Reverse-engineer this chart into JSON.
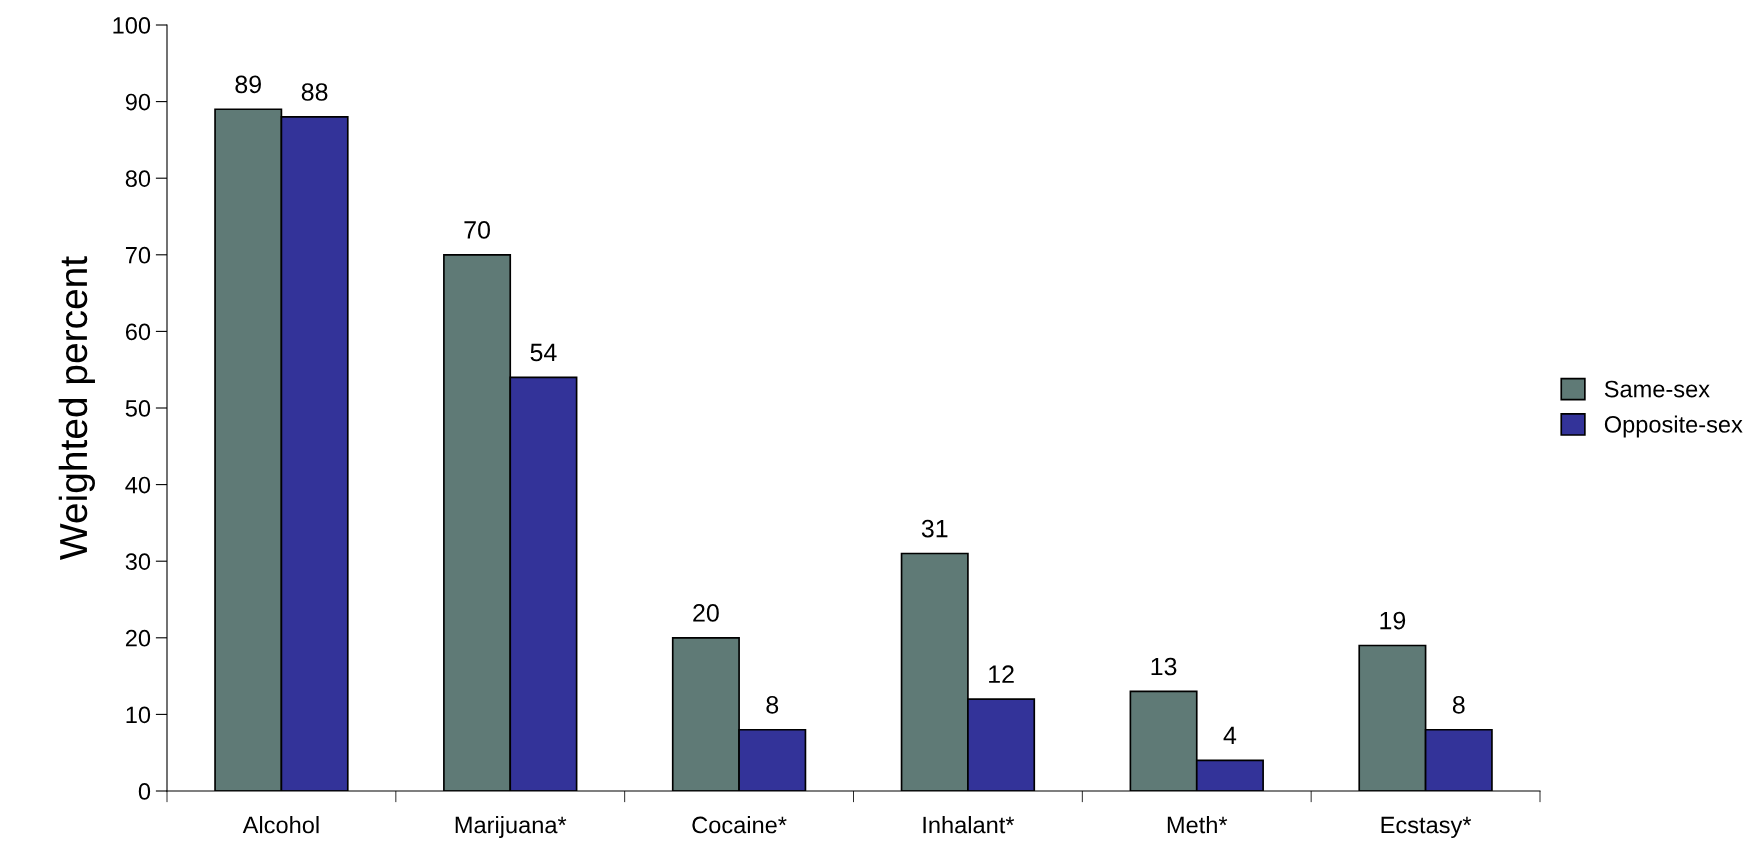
{
  "chart_data": {
    "type": "bar",
    "ylabel": "Weighted percent",
    "categories": [
      "Alcohol",
      "Marijuana*",
      "Cocaine*",
      "Inhalant*",
      "Meth*",
      "Ecstasy*"
    ],
    "series": [
      {
        "name": "Same-sex",
        "color": "#5f7a76",
        "values": [
          89,
          70,
          20,
          31,
          13,
          19
        ]
      },
      {
        "name": "Opposite-sex",
        "color": "#333399",
        "values": [
          88,
          54,
          8,
          12,
          4,
          8
        ]
      }
    ],
    "ylim": [
      0,
      100
    ],
    "yticks": [
      0,
      10,
      20,
      30,
      40,
      50,
      60,
      70,
      80,
      90,
      100
    ],
    "data_labels": true,
    "legend": "right",
    "grid": false
  }
}
